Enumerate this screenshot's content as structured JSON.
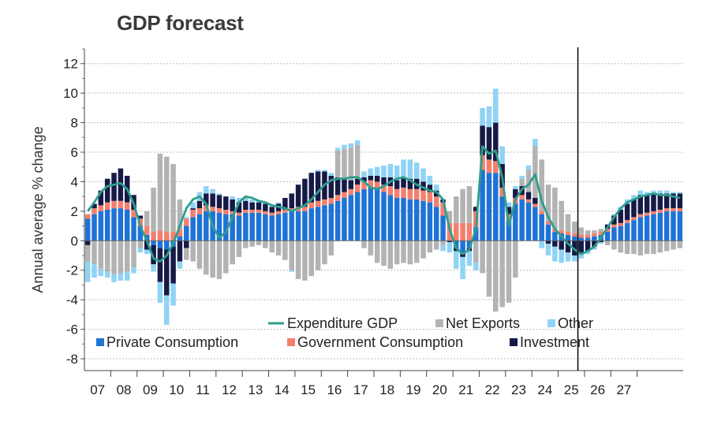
{
  "chart_data": {
    "type": "bar",
    "subtype": "stacked-bar-with-line",
    "title": "GDP forecast",
    "xlabel": "",
    "ylabel": "Annual average % change",
    "ylim": [
      -8.8,
      13
    ],
    "yticks": [
      -8,
      -6,
      -4,
      -2,
      0,
      2,
      4,
      6,
      8,
      10,
      12
    ],
    "x_start": 2007.0,
    "x_step": 0.25,
    "forecast_start": 2025.75,
    "year_ticks": [
      "07",
      "08",
      "09",
      "10",
      "11",
      "12",
      "13",
      "14",
      "15",
      "16",
      "17",
      "18",
      "19",
      "20",
      "21",
      "22",
      "23",
      "24",
      "25",
      "26",
      "27"
    ],
    "grid": true,
    "legend": [
      {
        "key": "gdp",
        "label": "Expenditure GDP",
        "color": "#2e9e8c",
        "shape": "line"
      },
      {
        "key": "netx",
        "label": "Net Exports",
        "color": "#b3b3b3",
        "shape": "square"
      },
      {
        "key": "other",
        "label": "Other",
        "color": "#8fd3f5",
        "shape": "square"
      },
      {
        "key": "pc",
        "label": "Private Consumption",
        "color": "#1f73d6",
        "shape": "square"
      },
      {
        "key": "gc",
        "label": "Government Consumption",
        "color": "#f47f6e",
        "shape": "square"
      },
      {
        "key": "inv",
        "label": "Investment",
        "color": "#151a47",
        "shape": "square"
      }
    ],
    "series": [
      {
        "name": "Private Consumption",
        "key": "pc",
        "values": [
          1.5,
          1.8,
          2.0,
          2.1,
          2.2,
          2.2,
          2.1,
          1.6,
          1.0,
          0.4,
          -0.3,
          -0.5,
          -0.6,
          -0.4,
          0.3,
          1.0,
          1.6,
          1.8,
          2.0,
          2.0,
          1.9,
          1.8,
          1.8,
          1.7,
          1.9,
          1.9,
          1.9,
          1.8,
          1.7,
          1.8,
          1.9,
          2.0,
          2.0,
          2.0,
          2.2,
          2.3,
          2.4,
          2.5,
          2.7,
          2.9,
          3.1,
          3.3,
          3.5,
          3.6,
          3.5,
          3.3,
          3.1,
          2.9,
          2.9,
          2.8,
          2.8,
          2.7,
          2.6,
          2.3,
          1.7,
          0.0,
          -0.5,
          -0.8,
          -0.5,
          0.9,
          4.8,
          4.6,
          4.6,
          3.0,
          1.4,
          2.5,
          2.8,
          2.6,
          2.3,
          1.8,
          1.1,
          0.6,
          0.5,
          0.4,
          0.3,
          0.2,
          0.2,
          0.3,
          0.4,
          0.6,
          0.9,
          1.0,
          1.2,
          1.4,
          1.6,
          1.7,
          1.8,
          1.9,
          2.0,
          2.0,
          2.0
        ]
      },
      {
        "name": "Government Consumption",
        "key": "gc",
        "values": [
          0.3,
          0.4,
          0.4,
          0.5,
          0.5,
          0.5,
          0.5,
          0.5,
          0.5,
          0.6,
          0.6,
          0.7,
          0.6,
          0.6,
          0.5,
          0.5,
          0.5,
          0.4,
          0.4,
          0.3,
          0.3,
          0.3,
          0.2,
          0.2,
          0.2,
          0.2,
          0.2,
          0.2,
          0.2,
          0.2,
          0.2,
          0.2,
          0.3,
          0.3,
          0.4,
          0.4,
          0.4,
          0.4,
          0.4,
          0.4,
          0.4,
          0.5,
          0.5,
          0.5,
          0.5,
          0.5,
          0.6,
          0.6,
          0.7,
          0.7,
          0.7,
          0.7,
          0.7,
          0.7,
          0.9,
          1.2,
          1.2,
          1.2,
          1.2,
          1.1,
          1.0,
          0.9,
          0.8,
          0.6,
          0.4,
          0.4,
          0.3,
          0.2,
          0.2,
          0.2,
          0.2,
          0.2,
          0.2,
          0.2,
          0.2,
          0.2,
          0.2,
          0.2,
          0.2,
          0.2,
          0.2,
          0.2,
          0.2,
          0.2,
          0.2,
          0.2,
          0.2,
          0.2,
          0.2,
          0.2,
          0.2
        ]
      },
      {
        "name": "Investment",
        "key": "inv",
        "values": [
          -0.3,
          0.3,
          1.0,
          1.6,
          1.9,
          2.2,
          1.8,
          1.0,
          0.2,
          -0.6,
          -1.3,
          -2.3,
          -3.1,
          -2.5,
          -1.4,
          -0.5,
          0.1,
          0.5,
          0.8,
          0.9,
          0.9,
          0.9,
          0.8,
          0.7,
          0.6,
          0.5,
          0.5,
          0.5,
          0.4,
          0.5,
          0.8,
          1.0,
          1.5,
          1.9,
          2.0,
          2.0,
          1.9,
          1.5,
          1.2,
          0.9,
          0.6,
          0.4,
          0.3,
          0.3,
          0.4,
          0.5,
          0.6,
          0.6,
          0.7,
          0.7,
          0.7,
          0.6,
          0.5,
          0.4,
          0.2,
          -0.1,
          -0.2,
          -0.3,
          -0.2,
          0.3,
          2.0,
          2.2,
          2.6,
          1.6,
          0.5,
          0.6,
          0.6,
          0.5,
          0.4,
          0.0,
          -0.2,
          -0.4,
          -0.6,
          -0.8,
          -1.0,
          -0.9,
          -0.7,
          -0.4,
          -0.1,
          0.3,
          0.6,
          0.9,
          1.1,
          1.2,
          1.3,
          1.2,
          1.2,
          1.1,
          1.0,
          1.0,
          1.0
        ]
      },
      {
        "name": "Net Exports",
        "key": "netx",
        "values": [
          -1.1,
          -1.6,
          -1.9,
          -2.1,
          -2.3,
          -2.2,
          -2.1,
          -1.8,
          -0.5,
          1.0,
          3.0,
          5.2,
          5.1,
          4.6,
          2.0,
          -0.8,
          -1.4,
          -1.9,
          -2.3,
          -2.5,
          -2.6,
          -2.2,
          -1.6,
          -1.1,
          -0.5,
          -0.4,
          -0.3,
          -0.5,
          -0.8,
          -1.0,
          -1.3,
          -2.0,
          -2.6,
          -2.7,
          -2.4,
          -2.0,
          -1.6,
          -1.0,
          1.8,
          2.0,
          2.2,
          2.3,
          -0.5,
          -1.0,
          -1.5,
          -1.7,
          -1.9,
          -1.6,
          -1.5,
          -1.6,
          -1.5,
          -1.2,
          -0.8,
          -0.6,
          -0.3,
          0.8,
          1.8,
          2.3,
          2.5,
          -1.5,
          -2.2,
          -3.8,
          -4.8,
          -4.5,
          -4.2,
          -2.5,
          0.5,
          1.5,
          3.5,
          3.5,
          2.5,
          2.8,
          2.0,
          1.2,
          0.8,
          0.5,
          0.3,
          0.2,
          0.2,
          -0.3,
          -0.6,
          -0.8,
          -0.9,
          -0.9,
          -1.0,
          -0.9,
          -0.9,
          -0.8,
          -0.7,
          -0.6,
          -0.5
        ]
      },
      {
        "name": "Other",
        "key": "other",
        "values": [
          -1.4,
          -0.9,
          -0.5,
          -0.4,
          -0.5,
          -0.5,
          -0.6,
          -0.4,
          -0.3,
          -0.3,
          -0.5,
          -1.4,
          -2.0,
          -1.5,
          -0.5,
          0.1,
          0.4,
          0.6,
          0.5,
          0.3,
          0.1,
          0.0,
          0.2,
          0.3,
          0.3,
          0.2,
          0.1,
          0.1,
          0.1,
          0.1,
          0.0,
          -0.1,
          0.0,
          0.0,
          0.0,
          0.1,
          0.1,
          0.2,
          0.2,
          0.3,
          0.3,
          0.3,
          0.4,
          0.5,
          0.6,
          0.8,
          0.9,
          1.0,
          1.2,
          1.3,
          1.1,
          0.9,
          0.6,
          0.4,
          -0.4,
          -0.7,
          -1.2,
          -1.5,
          -1.0,
          -0.5,
          1.2,
          1.4,
          2.3,
          1.2,
          0.3,
          0.2,
          0.2,
          0.3,
          0.5,
          -0.5,
          -0.8,
          -1.0,
          -0.9,
          -0.6,
          -0.4,
          -0.3,
          -0.2,
          -0.2,
          -0.1,
          0.0,
          0.1,
          0.2,
          0.3,
          0.3,
          0.3,
          0.2,
          0.2,
          0.2,
          0.2,
          0.1,
          0.1
        ]
      },
      {
        "name": "Expenditure GDP",
        "key": "gdp",
        "values": [
          2.0,
          2.6,
          3.3,
          3.7,
          3.8,
          3.9,
          3.5,
          2.5,
          1.0,
          0.0,
          -1.2,
          -1.4,
          -1.0,
          -0.2,
          1.0,
          2.2,
          2.8,
          3.0,
          2.5,
          1.0,
          0.2,
          0.6,
          1.6,
          2.6,
          3.0,
          2.9,
          2.7,
          2.6,
          2.4,
          2.3,
          2.2,
          2.0,
          2.2,
          2.4,
          2.8,
          3.3,
          3.8,
          4.1,
          4.2,
          4.2,
          4.3,
          4.3,
          4.0,
          3.6,
          3.5,
          3.7,
          4.0,
          4.2,
          4.3,
          4.1,
          3.8,
          3.6,
          3.4,
          3.3,
          2.8,
          0.8,
          -0.5,
          -0.9,
          -0.6,
          0.8,
          6.4,
          5.9,
          6.1,
          4.3,
          1.0,
          2.8,
          3.5,
          3.8,
          4.5,
          2.7,
          1.6,
          0.8,
          0.3,
          -0.2,
          -0.6,
          -0.9,
          -0.7,
          -0.4,
          0.2,
          0.9,
          1.6,
          2.2,
          2.6,
          2.8,
          3.0,
          3.1,
          3.2,
          3.1,
          3.1,
          3.0,
          2.9
        ]
      }
    ]
  }
}
